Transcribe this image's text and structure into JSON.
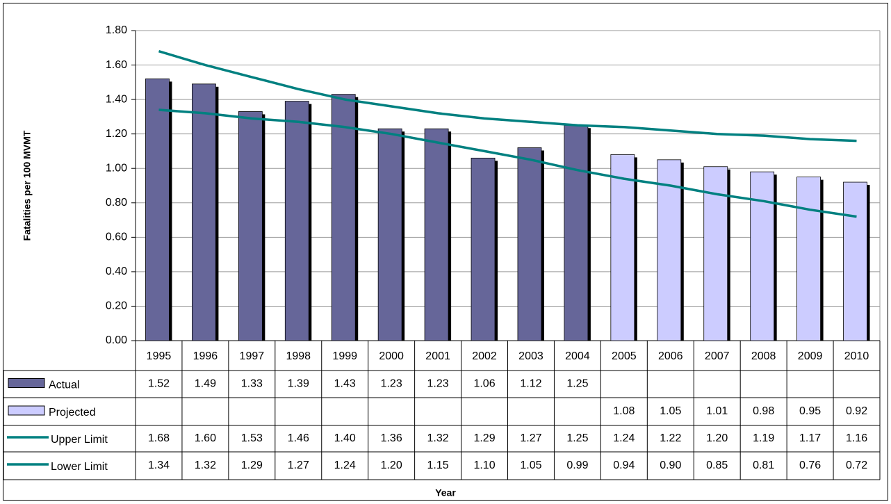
{
  "chart_data": {
    "type": "bar",
    "y_label": "Fatalities per 100 MVMT",
    "x_label": "Year",
    "categories": [
      "1995",
      "1996",
      "1997",
      "1998",
      "1999",
      "2000",
      "2001",
      "2002",
      "2003",
      "2004",
      "2005",
      "2006",
      "2007",
      "2008",
      "2009",
      "2010"
    ],
    "ylim": [
      0,
      1.8
    ],
    "yticks": [
      {
        "value": 0,
        "label": "0.00"
      },
      {
        "value": 0.2,
        "label": "0.20"
      },
      {
        "value": 0.4,
        "label": "0.40"
      },
      {
        "value": 0.6,
        "label": "0.60"
      },
      {
        "value": 0.8,
        "label": "0.80"
      },
      {
        "value": 1,
        "label": "1.00"
      },
      {
        "value": 1.2,
        "label": "1.20"
      },
      {
        "value": 1.4,
        "label": "1.40"
      },
      {
        "value": 1.6,
        "label": "1.60"
      },
      {
        "value": 1.8,
        "label": "1.80"
      }
    ],
    "grid": true,
    "series": [
      {
        "name": "Actual",
        "type": "bar",
        "color": "#666699",
        "values": [
          1.52,
          1.49,
          1.33,
          1.39,
          1.43,
          1.23,
          1.23,
          1.06,
          1.12,
          1.25,
          null,
          null,
          null,
          null,
          null,
          null
        ],
        "value_labels": [
          "1.52",
          "1.49",
          "1.33",
          "1.39",
          "1.43",
          "1.23",
          "1.23",
          "1.06",
          "1.12",
          "1.25",
          null,
          null,
          null,
          null,
          null,
          null
        ]
      },
      {
        "name": "Projected",
        "type": "bar",
        "color": "#ccccff",
        "values": [
          null,
          null,
          null,
          null,
          null,
          null,
          null,
          null,
          null,
          null,
          1.08,
          1.05,
          1.01,
          0.98,
          0.95,
          0.92
        ],
        "value_labels": [
          null,
          null,
          null,
          null,
          null,
          null,
          null,
          null,
          null,
          null,
          "1.08",
          "1.05",
          "1.01",
          "0.98",
          "0.95",
          "0.92"
        ]
      },
      {
        "name": "Upper Limit",
        "type": "line",
        "color": "#008080",
        "values": [
          1.68,
          1.6,
          1.53,
          1.46,
          1.4,
          1.36,
          1.32,
          1.29,
          1.27,
          1.25,
          1.24,
          1.22,
          1.2,
          1.19,
          1.17,
          1.16
        ],
        "value_labels": [
          "1.68",
          "1.60",
          "1.53",
          "1.46",
          "1.40",
          "1.36",
          "1.32",
          "1.29",
          "1.27",
          "1.25",
          "1.24",
          "1.22",
          "1.20",
          "1.19",
          "1.17",
          "1.16"
        ]
      },
      {
        "name": "Lower Limit",
        "type": "line",
        "color": "#008080",
        "values": [
          1.34,
          1.32,
          1.29,
          1.27,
          1.24,
          1.2,
          1.15,
          1.1,
          1.05,
          0.99,
          0.94,
          0.9,
          0.85,
          0.81,
          0.76,
          0.72
        ],
        "value_labels": [
          "1.34",
          "1.32",
          "1.29",
          "1.27",
          "1.24",
          "1.20",
          "1.15",
          "1.10",
          "1.05",
          "0.99",
          "0.94",
          "0.90",
          "0.85",
          "0.81",
          "0.76",
          "0.72"
        ]
      }
    ]
  }
}
